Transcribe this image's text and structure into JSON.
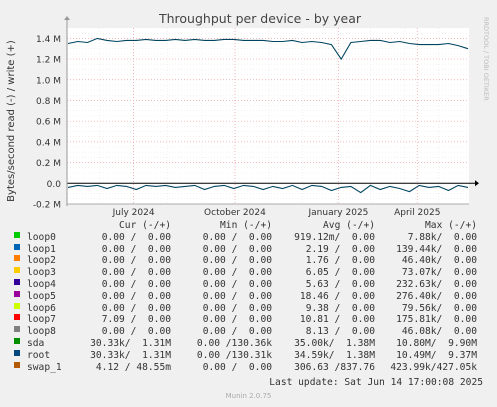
{
  "chart_data": {
    "type": "line",
    "title": "Throughput per device - by year",
    "ylabel": "Bytes/second read (-) / write (+)",
    "watermark": "RRDTOOL / TOBI OETIKER",
    "ylim": [
      -0.2,
      1.5
    ],
    "yticks": [
      "1.4 M",
      "1.2 M",
      "1.0 M",
      "0.8 M",
      "0.6 M",
      "0.4 M",
      "0.2 M",
      "0.0",
      "-0.2 M"
    ],
    "ytick_values": [
      1.4,
      1.2,
      1.0,
      0.8,
      0.6,
      0.4,
      0.2,
      0.0,
      -0.2
    ],
    "xticks": [
      "July 2024",
      "October 2024",
      "January 2025",
      "April 2025"
    ],
    "xtick_positions": [
      0.1657,
      0.4178,
      0.6753,
      0.8713
    ],
    "grid": true,
    "series": [
      {
        "name": "root",
        "color": "#00455f",
        "write_values": [
          1.35,
          1.37,
          1.36,
          1.4,
          1.38,
          1.37,
          1.38,
          1.38,
          1.39,
          1.38,
          1.38,
          1.39,
          1.38,
          1.39,
          1.38,
          1.38,
          1.39,
          1.39,
          1.38,
          1.38,
          1.38,
          1.37,
          1.37,
          1.38,
          1.36,
          1.37,
          1.36,
          1.34,
          1.2,
          1.36,
          1.37,
          1.38,
          1.38,
          1.36,
          1.37,
          1.35,
          1.34,
          1.34,
          1.34,
          1.35,
          1.33,
          1.3
        ],
        "read_values": [
          -0.04,
          -0.02,
          -0.03,
          -0.02,
          -0.05,
          -0.02,
          -0.03,
          -0.06,
          -0.02,
          -0.03,
          -0.02,
          -0.04,
          -0.03,
          -0.02,
          -0.06,
          -0.03,
          -0.02,
          -0.05,
          -0.02,
          -0.03,
          -0.06,
          -0.03,
          -0.05,
          -0.02,
          -0.06,
          -0.02,
          -0.03,
          -0.07,
          -0.04,
          -0.03,
          -0.09,
          -0.02,
          -0.06,
          -0.03,
          -0.05,
          -0.08,
          -0.02,
          -0.04,
          -0.03,
          -0.07,
          -0.02,
          -0.04
        ]
      }
    ],
    "legend": {
      "columns": [
        "Cur (-/+)",
        "Min (-/+)",
        "Avg (-/+)",
        "Max (-/+)"
      ],
      "rows": [
        {
          "name": "loop0",
          "color": "#00cc00",
          "cur": "0.00 /  0.00",
          "min": "0.00 /  0.00",
          "avg": "919.12m/  0.00",
          "max": "7.88k/  0.00"
        },
        {
          "name": "loop1",
          "color": "#0066b3",
          "cur": "0.00 /  0.00",
          "min": "0.00 /  0.00",
          "avg": "2.19 /  0.00",
          "max": "139.44k/  0.00"
        },
        {
          "name": "loop2",
          "color": "#ff8000",
          "cur": "0.00 /  0.00",
          "min": "0.00 /  0.00",
          "avg": "1.76 /  0.00",
          "max": "46.40k/  0.00"
        },
        {
          "name": "loop3",
          "color": "#ffcc00",
          "cur": "0.00 /  0.00",
          "min": "0.00 /  0.00",
          "avg": "6.05 /  0.00",
          "max": "73.07k/  0.00"
        },
        {
          "name": "loop4",
          "color": "#330099",
          "cur": "0.00 /  0.00",
          "min": "0.00 /  0.00",
          "avg": "5.63 /  0.00",
          "max": "232.63k/  0.00"
        },
        {
          "name": "loop5",
          "color": "#990099",
          "cur": "0.00 /  0.00",
          "min": "0.00 /  0.00",
          "avg": "18.46 /  0.00",
          "max": "276.40k/  0.00"
        },
        {
          "name": "loop6",
          "color": "#ccff00",
          "cur": "0.00 /  0.00",
          "min": "0.00 /  0.00",
          "avg": "9.38 /  0.00",
          "max": "79.56k/  0.00"
        },
        {
          "name": "loop7",
          "color": "#ff0000",
          "cur": "7.09 /  0.00",
          "min": "0.00 /  0.00",
          "avg": "10.81 /  0.00",
          "max": "175.81k/  0.00"
        },
        {
          "name": "loop8",
          "color": "#808080",
          "cur": "0.00 /  0.00",
          "min": "0.00 /  0.00",
          "avg": "8.13 /  0.00",
          "max": "46.08k/  0.00"
        },
        {
          "name": "sda",
          "color": "#008f00",
          "cur": "30.33k/  1.31M",
          "min": "0.00 /130.36k",
          "avg": "35.00k/  1.38M",
          "max": "10.80M/  9.90M"
        },
        {
          "name": "root",
          "color": "#00487d",
          "cur": "30.33k/  1.31M",
          "min": "0.00 /130.31k",
          "avg": "34.59k/  1.38M",
          "max": "10.49M/  9.37M"
        },
        {
          "name": "swap_1",
          "color": "#b35a00",
          "cur": "4.12 / 48.55m",
          "min": "0.00 /  0.00",
          "avg": "306.63 /837.76",
          "max": "423.99k/427.05k"
        }
      ]
    }
  },
  "footer": {
    "last_update": "Last update: Sat Jun 14 17:00:08 2025",
    "version": "Munin 2.0.75"
  }
}
